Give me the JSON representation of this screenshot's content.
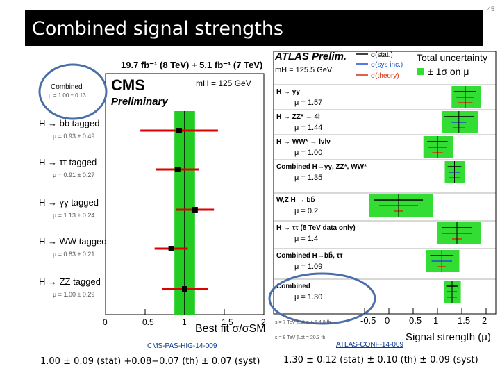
{
  "slide": {
    "title": "Combined signal strengths",
    "page_number": "45"
  },
  "cms": {
    "lumi": "19.7 fb⁻¹ (8 TeV) + 5.1 fb⁻¹ (7 TeV)",
    "logo": "CMS",
    "subtitle": "Preliminary",
    "mass": "mH = 125 GeV",
    "combined_label": "Combined",
    "combined_value": "μ = 1.00 ± 0.13",
    "xlabel": "Best fit σ/σSM",
    "xticks": [
      "0",
      "0.5",
      "1",
      "1.5",
      "2"
    ],
    "reference": "CMS-PAS-HIG-14-009",
    "result": "1.00 ± 0.09 (stat) +0.08−0.07 (th) ± 0.07 (syst)",
    "colors": {
      "band": "#22cc22",
      "bar": "#dd0000",
      "marker": "#000000",
      "highlight": "#4a6ea8"
    }
  },
  "atlas": {
    "logo": "ATLAS Prelim.",
    "mass": "mH = 125.5 GeV",
    "legend": {
      "stat": "σ(stat.)",
      "sys": "σ(sys inc.)",
      "theory": "σ(theory)",
      "total": "Total uncertainty",
      "band": "± 1σ on μ"
    },
    "xlabel": "Signal strength (μ)",
    "xticks": [
      "-0.5",
      "0",
      "0.5",
      "1",
      "1.5",
      "2"
    ],
    "lumi_lines": [
      "s = 7 TeV ∫Ldt = 4.6-4.8 fb",
      "s = 8 TeV ∫Ldt = 20.3 fb"
    ],
    "reference": "ATLAS-CONF-14-009",
    "result": "1.30 ± 0.12 (stat) ± 0.10 (th) ± 0.09 (syst)",
    "colors": {
      "band": "#33dd33",
      "stat": "#000000",
      "sys": "#1a4fd0",
      "theory": "#d03010",
      "highlight": "#4a6ea8"
    }
  },
  "chart_data": [
    {
      "type": "scatter",
      "title": "CMS Preliminary",
      "xlabel": "Best fit σ/σSM",
      "xlim": [
        0,
        2
      ],
      "combined": {
        "mu": 1.0,
        "err": 0.13
      },
      "series": [
        {
          "name": "H → bb tagged",
          "value_label": "μ = 0.93 ± 0.49",
          "mu": 0.93,
          "err_lo": 0.49,
          "err_hi": 0.49
        },
        {
          "name": "H → ττ tagged",
          "value_label": "μ = 0.91 ± 0.27",
          "mu": 0.91,
          "err_lo": 0.27,
          "err_hi": 0.27
        },
        {
          "name": "H → γγ tagged",
          "value_label": "μ = 1.13 ± 0.24",
          "mu": 1.13,
          "err_lo": 0.24,
          "err_hi": 0.24
        },
        {
          "name": "H → WW tagged",
          "value_label": "μ = 0.83 ± 0.21",
          "mu": 0.83,
          "err_lo": 0.21,
          "err_hi": 0.21
        },
        {
          "name": "H → ZZ tagged",
          "value_label": "μ = 1.00 ± 0.29",
          "mu": 1.0,
          "err_lo": 0.29,
          "err_hi": 0.29
        }
      ]
    },
    {
      "type": "scatter",
      "title": "ATLAS Prelim.",
      "xlabel": "Signal strength (μ)",
      "xlim": [
        -0.8,
        2.2
      ],
      "series": [
        {
          "name": "H → γγ",
          "value_label": "μ = 1.57",
          "mu": 1.57,
          "err_hi": 0.33,
          "err_lo": 0.28,
          "stat": 0.23,
          "sys": 0.18,
          "theory": 0.15
        },
        {
          "name": "H → ZZ* → 4l",
          "value_label": "μ = 1.44",
          "mu": 1.44,
          "err_hi": 0.4,
          "err_lo": 0.35,
          "stat": 0.31,
          "sys": 0.15,
          "theory": 0.13
        },
        {
          "name": "H → WW* → lνlν",
          "value_label": "μ = 1.00",
          "mu": 1.0,
          "err_hi": 0.32,
          "err_lo": 0.29,
          "stat": 0.21,
          "sys": 0.19,
          "theory": 0.11
        },
        {
          "name": "Combined H→γγ, ZZ*, WW*",
          "value_label": "μ = 1.35",
          "mu": 1.35,
          "err_hi": 0.21,
          "err_lo": 0.2,
          "stat": 0.14,
          "sys": 0.11,
          "theory": 0.12
        },
        {
          "name": "W,Z H → bb̄",
          "value_label": "μ = 0.2",
          "mu": 0.2,
          "err_hi": 0.7,
          "err_lo": 0.6,
          "stat": 0.5,
          "sys": 0.4,
          "theory": 0.1
        },
        {
          "name": "H → ττ (8 TeV data only)",
          "value_label": "μ = 1.4",
          "mu": 1.4,
          "err_hi": 0.5,
          "err_lo": 0.4,
          "stat": 0.3,
          "sys": 0.3,
          "theory": 0.1
        },
        {
          "name": "Combined H→bb̄, ττ",
          "value_label": "μ = 1.09",
          "mu": 1.09,
          "err_hi": 0.36,
          "err_lo": 0.32,
          "stat": 0.24,
          "sys": 0.21,
          "theory": 0.08
        },
        {
          "name": "Combined",
          "value_label": "μ = 1.30",
          "mu": 1.3,
          "err_hi": 0.18,
          "err_lo": 0.17,
          "stat": 0.12,
          "sys": 0.1,
          "theory": 0.1
        }
      ]
    }
  ]
}
